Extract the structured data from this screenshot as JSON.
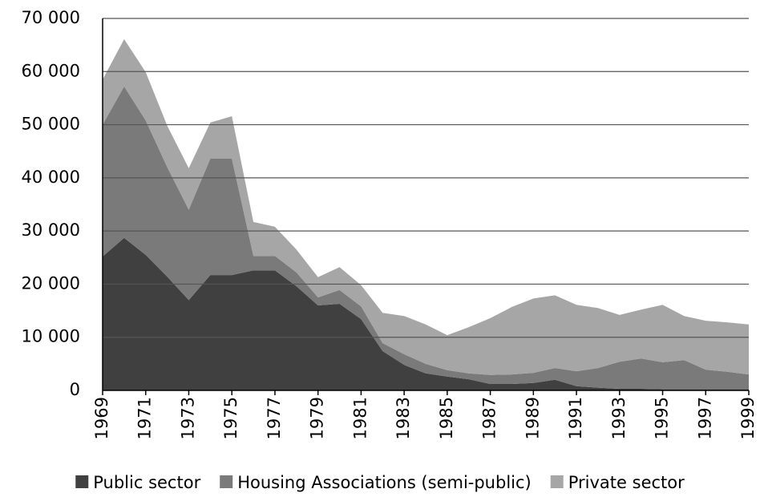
{
  "chart_data": {
    "type": "stacked-area",
    "x": [
      1969,
      1970,
      1971,
      1972,
      1973,
      1974,
      1975,
      1976,
      1977,
      1978,
      1979,
      1980,
      1981,
      1982,
      1983,
      1984,
      1985,
      1986,
      1987,
      1988,
      1989,
      1990,
      1991,
      1992,
      1993,
      1994,
      1995,
      1996,
      1997,
      1998,
      1999
    ],
    "series": [
      {
        "name": "Public sector",
        "color": "#404040",
        "values": [
          25200,
          28700,
          25500,
          21400,
          17000,
          21700,
          21700,
          22600,
          22600,
          19600,
          16000,
          16300,
          13400,
          7400,
          4800,
          3200,
          2600,
          2100,
          1200,
          1200,
          1400,
          2000,
          800,
          500,
          300,
          300,
          200,
          200,
          200,
          200,
          200
        ]
      },
      {
        "name": "Housing Associations (semi-public)",
        "color": "#7a7a7a",
        "values": [
          24800,
          28500,
          25300,
          20600,
          17000,
          21900,
          21900,
          2700,
          2700,
          2600,
          1500,
          2600,
          2400,
          1500,
          2000,
          1800,
          1200,
          1100,
          1700,
          1800,
          1900,
          2200,
          2800,
          3700,
          5100,
          5700,
          5100,
          5500,
          3700,
          3300,
          2800
        ]
      },
      {
        "name": "Private sector",
        "color": "#a6a6a6",
        "values": [
          8500,
          8900,
          9100,
          7800,
          7800,
          6800,
          8000,
          6400,
          5500,
          4300,
          3800,
          4300,
          4000,
          5700,
          7200,
          7400,
          6600,
          8700,
          10700,
          12700,
          14000,
          13700,
          12500,
          11300,
          8800,
          9200,
          10800,
          8300,
          9200,
          9300,
          9400
        ]
      }
    ],
    "xlim": [
      1969,
      1999
    ],
    "xticks": [
      1969,
      1971,
      1973,
      1975,
      1977,
      1979,
      1981,
      1983,
      1985,
      1987,
      1989,
      1991,
      1993,
      1995,
      1997,
      1999
    ],
    "ylim": [
      0,
      70000
    ],
    "yticks": [
      0,
      {
        "value": 10000,
        "label": "10 000"
      },
      {
        "value": 20000,
        "label": "20 000"
      },
      {
        "value": 30000,
        "label": "30 000"
      },
      {
        "value": 40000,
        "label": "40 000"
      },
      {
        "value": 50000,
        "label": "50 000"
      },
      {
        "value": 60000,
        "label": "60 000"
      },
      {
        "value": 70000,
        "label": "70 000"
      }
    ],
    "grid": true,
    "legend": "bottom"
  }
}
